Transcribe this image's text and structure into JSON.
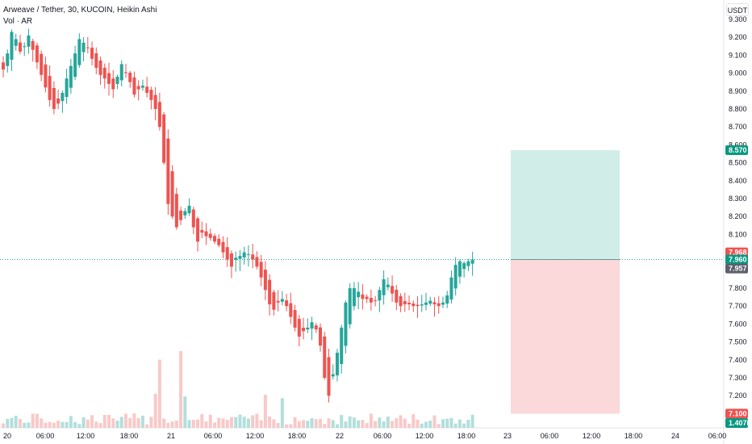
{
  "header": {
    "symbol_line": "Arweave / Tether, 30, KUCOIN, Heikin Ashi",
    "volume_line": "Vol · AR"
  },
  "unit_button": "USDT",
  "colors": {
    "up": "#26a69a",
    "down": "#ef5350",
    "vol_up": "#b2dfdb",
    "vol_down": "#f8c9c8",
    "profit_zone": "#d1ede8",
    "loss_zone": "#fbd8da",
    "last_price": "#26a69a"
  },
  "chart_data": {
    "type": "candlestick",
    "title": "Arweave / Tether, 30, KUCOIN, Heikin Ashi",
    "yaxis": {
      "range": [
        7.08,
        9.36
      ],
      "ticks": [
        "9.300",
        "9.200",
        "9.100",
        "9.000",
        "8.900",
        "8.800",
        "8.700",
        "8.600",
        "8.500",
        "8.400",
        "8.300",
        "8.200",
        "8.100",
        "7.800",
        "7.700",
        "7.600",
        "7.500",
        "7.400",
        "7.300",
        "7.200"
      ]
    },
    "xaxis_labels": [
      "20",
      "06:00",
      "12:00",
      "18:00",
      "21",
      "06:00",
      "12:00",
      "18:00",
      "22",
      "06:00",
      "12:00",
      "18:00",
      "23",
      "06:00",
      "12:00",
      "18:00",
      "24",
      "06:00"
    ],
    "candle_closes": [
      9.02,
      9.11,
      9.23,
      9.19,
      9.12,
      9.15,
      9.21,
      9.13,
      9.06,
      8.99,
      8.92,
      8.85,
      8.8,
      8.83,
      8.89,
      8.97,
      9.04,
      9.11,
      9.19,
      9.17,
      9.14,
      9.08,
      9.03,
      8.99,
      8.97,
      8.94,
      8.91,
      8.98,
      9.05,
      9.0,
      8.95,
      8.88,
      8.91,
      8.93,
      8.89,
      8.85,
      8.8,
      8.7,
      8.5,
      8.27,
      8.2,
      8.14,
      8.18,
      8.23,
      8.26,
      8.14,
      8.06,
      8.11,
      8.09,
      8.08,
      8.06,
      8.04,
      8.0,
      7.96,
      7.92,
      7.97,
      7.98,
      8.0,
      7.99,
      7.96,
      7.92,
      7.86,
      7.79,
      7.71,
      7.68,
      7.72,
      7.74,
      7.7,
      7.64,
      7.58,
      7.53,
      7.56,
      7.58,
      7.61,
      7.57,
      7.48,
      7.3,
      7.2,
      7.32,
      7.44,
      7.58,
      7.72,
      7.8,
      7.8,
      7.78,
      7.74,
      7.74,
      7.72,
      7.73,
      7.79,
      7.85,
      7.82,
      7.77,
      7.72,
      7.7,
      7.71,
      7.71,
      7.7,
      7.7,
      7.71,
      7.72,
      7.73,
      7.71,
      7.7,
      7.72,
      7.76,
      7.86,
      7.93,
      7.95,
      7.94,
      7.95,
      7.96
    ],
    "position": {
      "target": "8.570",
      "entry": "7.960",
      "stop": "7.100"
    },
    "price_labels": {
      "last": "7.960",
      "high_marker": "7.968",
      "low_marker": "7.957",
      "volume_last": "1.407K"
    }
  }
}
